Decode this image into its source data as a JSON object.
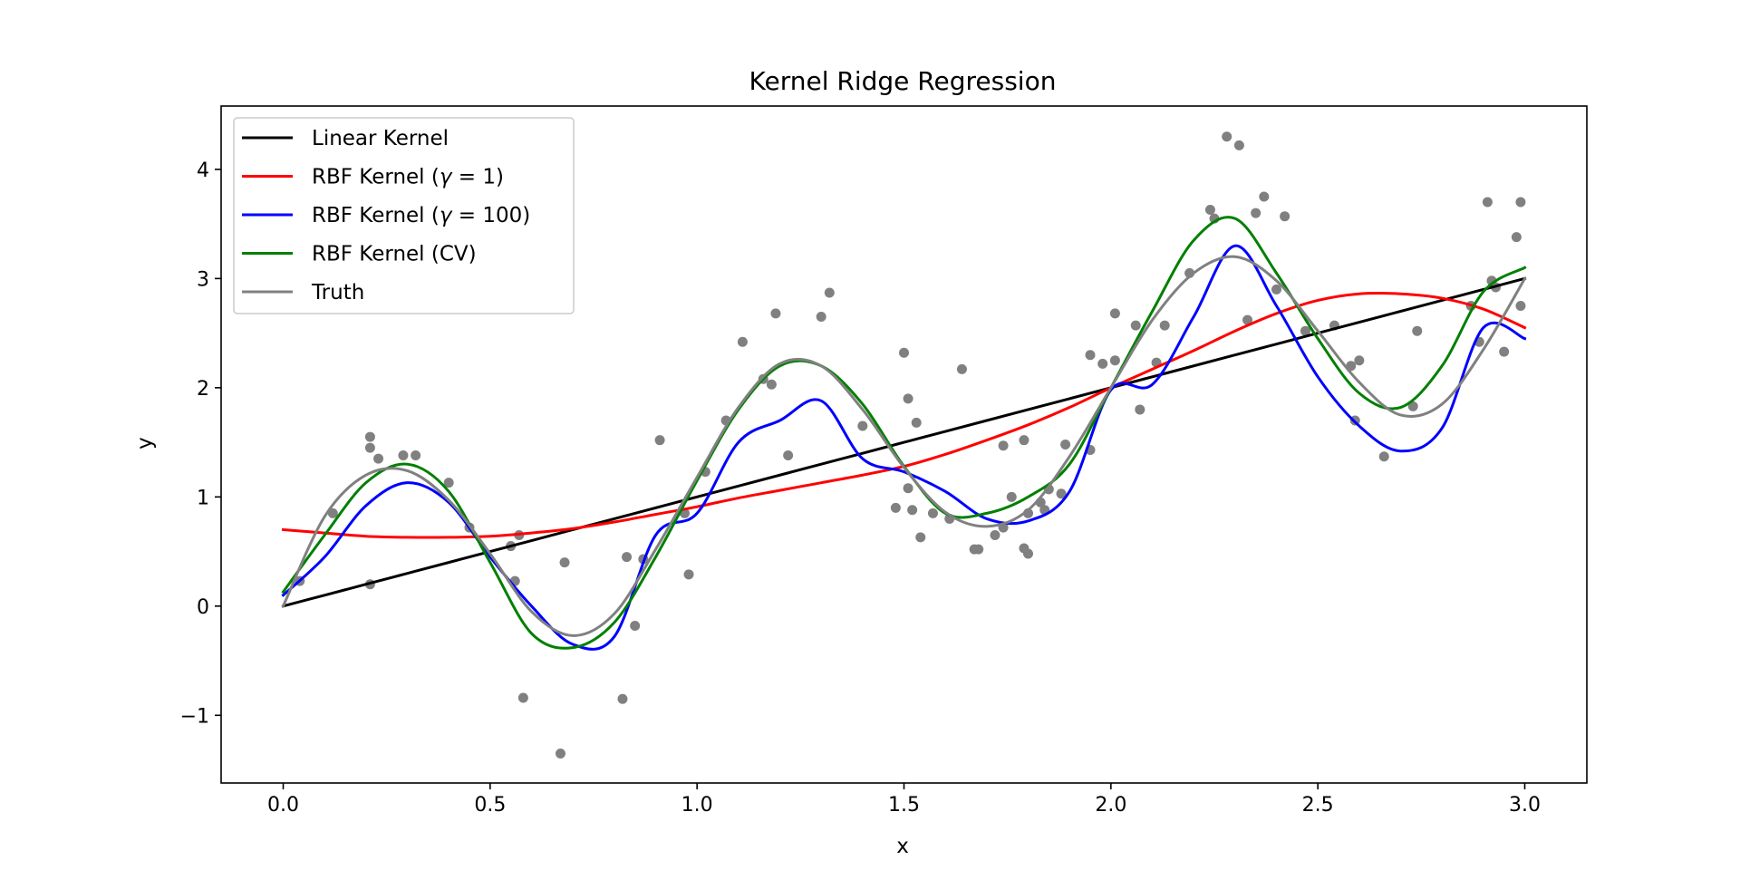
{
  "chart_data": {
    "type": "line",
    "title": "Kernel Ridge Regression",
    "xlabel": "x",
    "ylabel": "y",
    "xlim": [
      -0.15,
      3.15
    ],
    "ylim": [
      -1.62,
      4.58
    ],
    "xticks": [
      0.0,
      0.5,
      1.0,
      1.5,
      2.0,
      2.5,
      3.0
    ],
    "xtick_labels": [
      "0.0",
      "0.5",
      "1.0",
      "1.5",
      "2.0",
      "2.5",
      "3.0"
    ],
    "yticks": [
      -1,
      0,
      1,
      2,
      3,
      4
    ],
    "ytick_labels": [
      "−1",
      "0",
      "1",
      "2",
      "3",
      "4"
    ],
    "grid": false,
    "legend_position": "upper-left",
    "x": [
      0.0,
      0.1,
      0.2,
      0.3,
      0.4,
      0.5,
      0.6,
      0.7,
      0.8,
      0.9,
      1.0,
      1.1,
      1.2,
      1.3,
      1.4,
      1.5,
      1.6,
      1.7,
      1.8,
      1.9,
      2.0,
      2.1,
      2.2,
      2.3,
      2.4,
      2.5,
      2.6,
      2.7,
      2.8,
      2.9,
      3.0
    ],
    "series": [
      {
        "name": "Linear Kernel",
        "color": "#000000",
        "values": [
          0.0,
          0.1,
          0.2,
          0.3,
          0.4,
          0.5,
          0.6,
          0.7,
          0.8,
          0.9,
          1.0,
          1.1,
          1.2,
          1.3,
          1.4,
          1.5,
          1.6,
          1.7,
          1.8,
          1.9,
          2.0,
          2.1,
          2.2,
          2.3,
          2.4,
          2.5,
          2.6,
          2.7,
          2.8,
          2.9,
          3.0
        ]
      },
      {
        "name": "RBF Kernel (γ = 1)",
        "legend_prefix": "RBF Kernel (",
        "legend_var": "γ",
        "legend_value": " = 1)",
        "color": "#ff0000",
        "values": [
          0.7,
          0.67,
          0.64,
          0.63,
          0.63,
          0.64,
          0.67,
          0.71,
          0.77,
          0.84,
          0.91,
          0.99,
          1.06,
          1.13,
          1.2,
          1.28,
          1.39,
          1.52,
          1.66,
          1.82,
          2.0,
          2.17,
          2.34,
          2.52,
          2.68,
          2.8,
          2.86,
          2.86,
          2.82,
          2.72,
          2.55
        ]
      },
      {
        "name": "RBF Kernel (γ = 100)",
        "legend_prefix": "RBF Kernel (",
        "legend_var": "γ",
        "legend_value": " = 100)",
        "color": "#0000ff",
        "values": [
          0.1,
          0.45,
          0.92,
          1.13,
          0.95,
          0.45,
          0.0,
          -0.35,
          -0.28,
          0.65,
          0.85,
          1.5,
          1.7,
          1.88,
          1.35,
          1.23,
          1.05,
          0.8,
          0.78,
          1.05,
          1.98,
          2.03,
          2.65,
          3.3,
          2.75,
          2.1,
          1.65,
          1.42,
          1.63,
          2.55,
          2.45
        ]
      },
      {
        "name": "RBF Kernel (CV)",
        "color": "#008000",
        "values": [
          0.13,
          0.65,
          1.13,
          1.3,
          1.05,
          0.4,
          -0.25,
          -0.38,
          -0.15,
          0.45,
          1.15,
          1.8,
          2.2,
          2.2,
          1.85,
          1.28,
          0.85,
          0.85,
          1.0,
          1.3,
          2.0,
          2.7,
          3.35,
          3.55,
          3.05,
          2.45,
          1.95,
          1.82,
          2.2,
          2.88,
          3.1
        ]
      },
      {
        "name": "Truth",
        "color": "#808080",
        "values": [
          0.0,
          0.82,
          1.2,
          1.24,
          0.97,
          0.48,
          -0.05,
          -0.27,
          -0.07,
          0.52,
          1.18,
          1.82,
          2.22,
          2.2,
          1.8,
          1.27,
          0.86,
          0.73,
          0.88,
          1.37,
          2.0,
          2.62,
          3.05,
          3.2,
          2.98,
          2.52,
          2.05,
          1.75,
          1.85,
          2.35,
          3.0
        ]
      }
    ],
    "scatter": {
      "color": "#808080",
      "points": [
        [
          0.21,
          1.55
        ],
        [
          0.21,
          1.45
        ],
        [
          0.23,
          1.35
        ],
        [
          0.29,
          1.38
        ],
        [
          0.32,
          1.38
        ],
        [
          0.12,
          0.85
        ],
        [
          0.4,
          1.13
        ],
        [
          0.45,
          0.72
        ],
        [
          0.55,
          0.55
        ],
        [
          0.56,
          0.23
        ],
        [
          0.57,
          0.65
        ],
        [
          0.58,
          -0.84
        ],
        [
          0.21,
          0.2
        ],
        [
          0.04,
          0.23
        ],
        [
          0.67,
          -1.35
        ],
        [
          0.68,
          0.4
        ],
        [
          0.82,
          -0.85
        ],
        [
          0.83,
          0.45
        ],
        [
          0.85,
          -0.18
        ],
        [
          0.87,
          0.43
        ],
        [
          0.91,
          1.52
        ],
        [
          0.97,
          0.85
        ],
        [
          0.98,
          0.29
        ],
        [
          1.02,
          1.23
        ],
        [
          1.07,
          1.7
        ],
        [
          1.11,
          2.42
        ],
        [
          1.16,
          2.08
        ],
        [
          1.18,
          2.03
        ],
        [
          1.19,
          2.68
        ],
        [
          1.22,
          1.38
        ],
        [
          1.3,
          2.65
        ],
        [
          1.32,
          2.87
        ],
        [
          1.4,
          1.65
        ],
        [
          1.5,
          2.32
        ],
        [
          1.51,
          1.9
        ],
        [
          1.51,
          1.08
        ],
        [
          1.52,
          0.88
        ],
        [
          1.53,
          1.68
        ],
        [
          1.54,
          0.63
        ],
        [
          1.48,
          0.9
        ],
        [
          1.57,
          0.85
        ],
        [
          1.61,
          0.8
        ],
        [
          1.64,
          2.17
        ],
        [
          1.67,
          0.52
        ],
        [
          1.68,
          0.52
        ],
        [
          1.72,
          0.65
        ],
        [
          1.74,
          1.47
        ],
        [
          1.74,
          0.72
        ],
        [
          1.76,
          1.0
        ],
        [
          1.79,
          1.52
        ],
        [
          1.79,
          0.53
        ],
        [
          1.8,
          0.48
        ],
        [
          1.8,
          0.85
        ],
        [
          1.83,
          0.95
        ],
        [
          1.84,
          0.88
        ],
        [
          1.85,
          1.07
        ],
        [
          1.88,
          1.03
        ],
        [
          1.89,
          1.48
        ],
        [
          1.95,
          1.43
        ],
        [
          1.95,
          2.3
        ],
        [
          1.98,
          2.22
        ],
        [
          2.01,
          2.25
        ],
        [
          2.01,
          2.68
        ],
        [
          2.06,
          2.57
        ],
        [
          2.07,
          1.8
        ],
        [
          2.11,
          2.23
        ],
        [
          2.13,
          2.57
        ],
        [
          2.19,
          3.05
        ],
        [
          2.24,
          3.63
        ],
        [
          2.25,
          3.55
        ],
        [
          2.28,
          4.3
        ],
        [
          2.31,
          4.22
        ],
        [
          2.33,
          2.62
        ],
        [
          2.35,
          3.6
        ],
        [
          2.37,
          3.75
        ],
        [
          2.4,
          2.9
        ],
        [
          2.42,
          3.57
        ],
        [
          2.47,
          2.52
        ],
        [
          2.54,
          2.57
        ],
        [
          2.58,
          2.2
        ],
        [
          2.59,
          1.7
        ],
        [
          2.6,
          2.25
        ],
        [
          2.66,
          1.37
        ],
        [
          2.73,
          1.83
        ],
        [
          2.74,
          2.52
        ],
        [
          2.87,
          2.75
        ],
        [
          2.89,
          2.42
        ],
        [
          2.91,
          3.7
        ],
        [
          2.92,
          2.98
        ],
        [
          2.93,
          2.92
        ],
        [
          2.95,
          2.33
        ],
        [
          2.98,
          3.38
        ],
        [
          2.99,
          3.7
        ],
        [
          2.99,
          2.75
        ]
      ]
    }
  }
}
